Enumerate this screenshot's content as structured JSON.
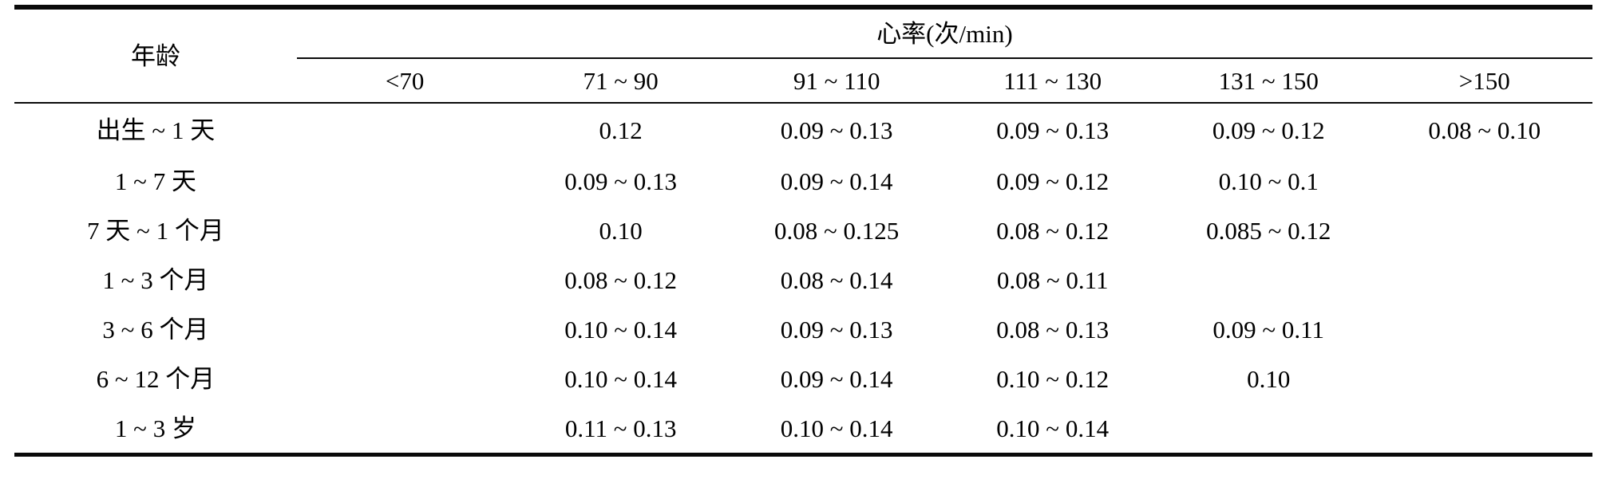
{
  "page": {
    "background": "#ffffff",
    "rule_color": "#0a0a0a",
    "text_color": "#000000"
  },
  "table": {
    "corner_header": "年龄",
    "span_header": "心率(次/min)",
    "columns": [
      "<70",
      "71 ~ 90",
      "91 ~ 110",
      "111 ~ 130",
      "131 ~ 150",
      ">150"
    ],
    "rows": [
      {
        "age": "出生 ~ 1 天",
        "values": [
          "",
          "0.12",
          "0.09 ~ 0.13",
          "0.09 ~ 0.13",
          "0.09 ~ 0.12",
          "0.08 ~ 0.10"
        ]
      },
      {
        "age": "1 ~ 7 天",
        "values": [
          "",
          "0.09 ~ 0.13",
          "0.09 ~ 0.14",
          "0.09 ~ 0.12",
          "0.10 ~ 0.1",
          ""
        ]
      },
      {
        "age": "7 天 ~ 1 个月",
        "values": [
          "",
          "0.10",
          "0.08 ~ 0.125",
          "0.08 ~ 0.12",
          "0.085 ~ 0.12",
          ""
        ]
      },
      {
        "age": "1 ~ 3 个月",
        "values": [
          "",
          "0.08 ~ 0.12",
          "0.08 ~ 0.14",
          "0.08 ~ 0.11",
          "",
          ""
        ]
      },
      {
        "age": "3 ~ 6 个月",
        "values": [
          "",
          "0.10 ~ 0.14",
          "0.09 ~ 0.13",
          "0.08 ~ 0.13",
          "0.09 ~ 0.11",
          ""
        ]
      },
      {
        "age": "6 ~ 12 个月",
        "values": [
          "",
          "0.10 ~ 0.14",
          "0.09 ~ 0.14",
          "0.10 ~ 0.12",
          "0.10",
          ""
        ]
      },
      {
        "age": "1 ~ 3 岁",
        "values": [
          "",
          "0.11 ~ 0.13",
          "0.10 ~ 0.14",
          "0.10 ~ 0.14",
          "",
          ""
        ]
      }
    ]
  }
}
